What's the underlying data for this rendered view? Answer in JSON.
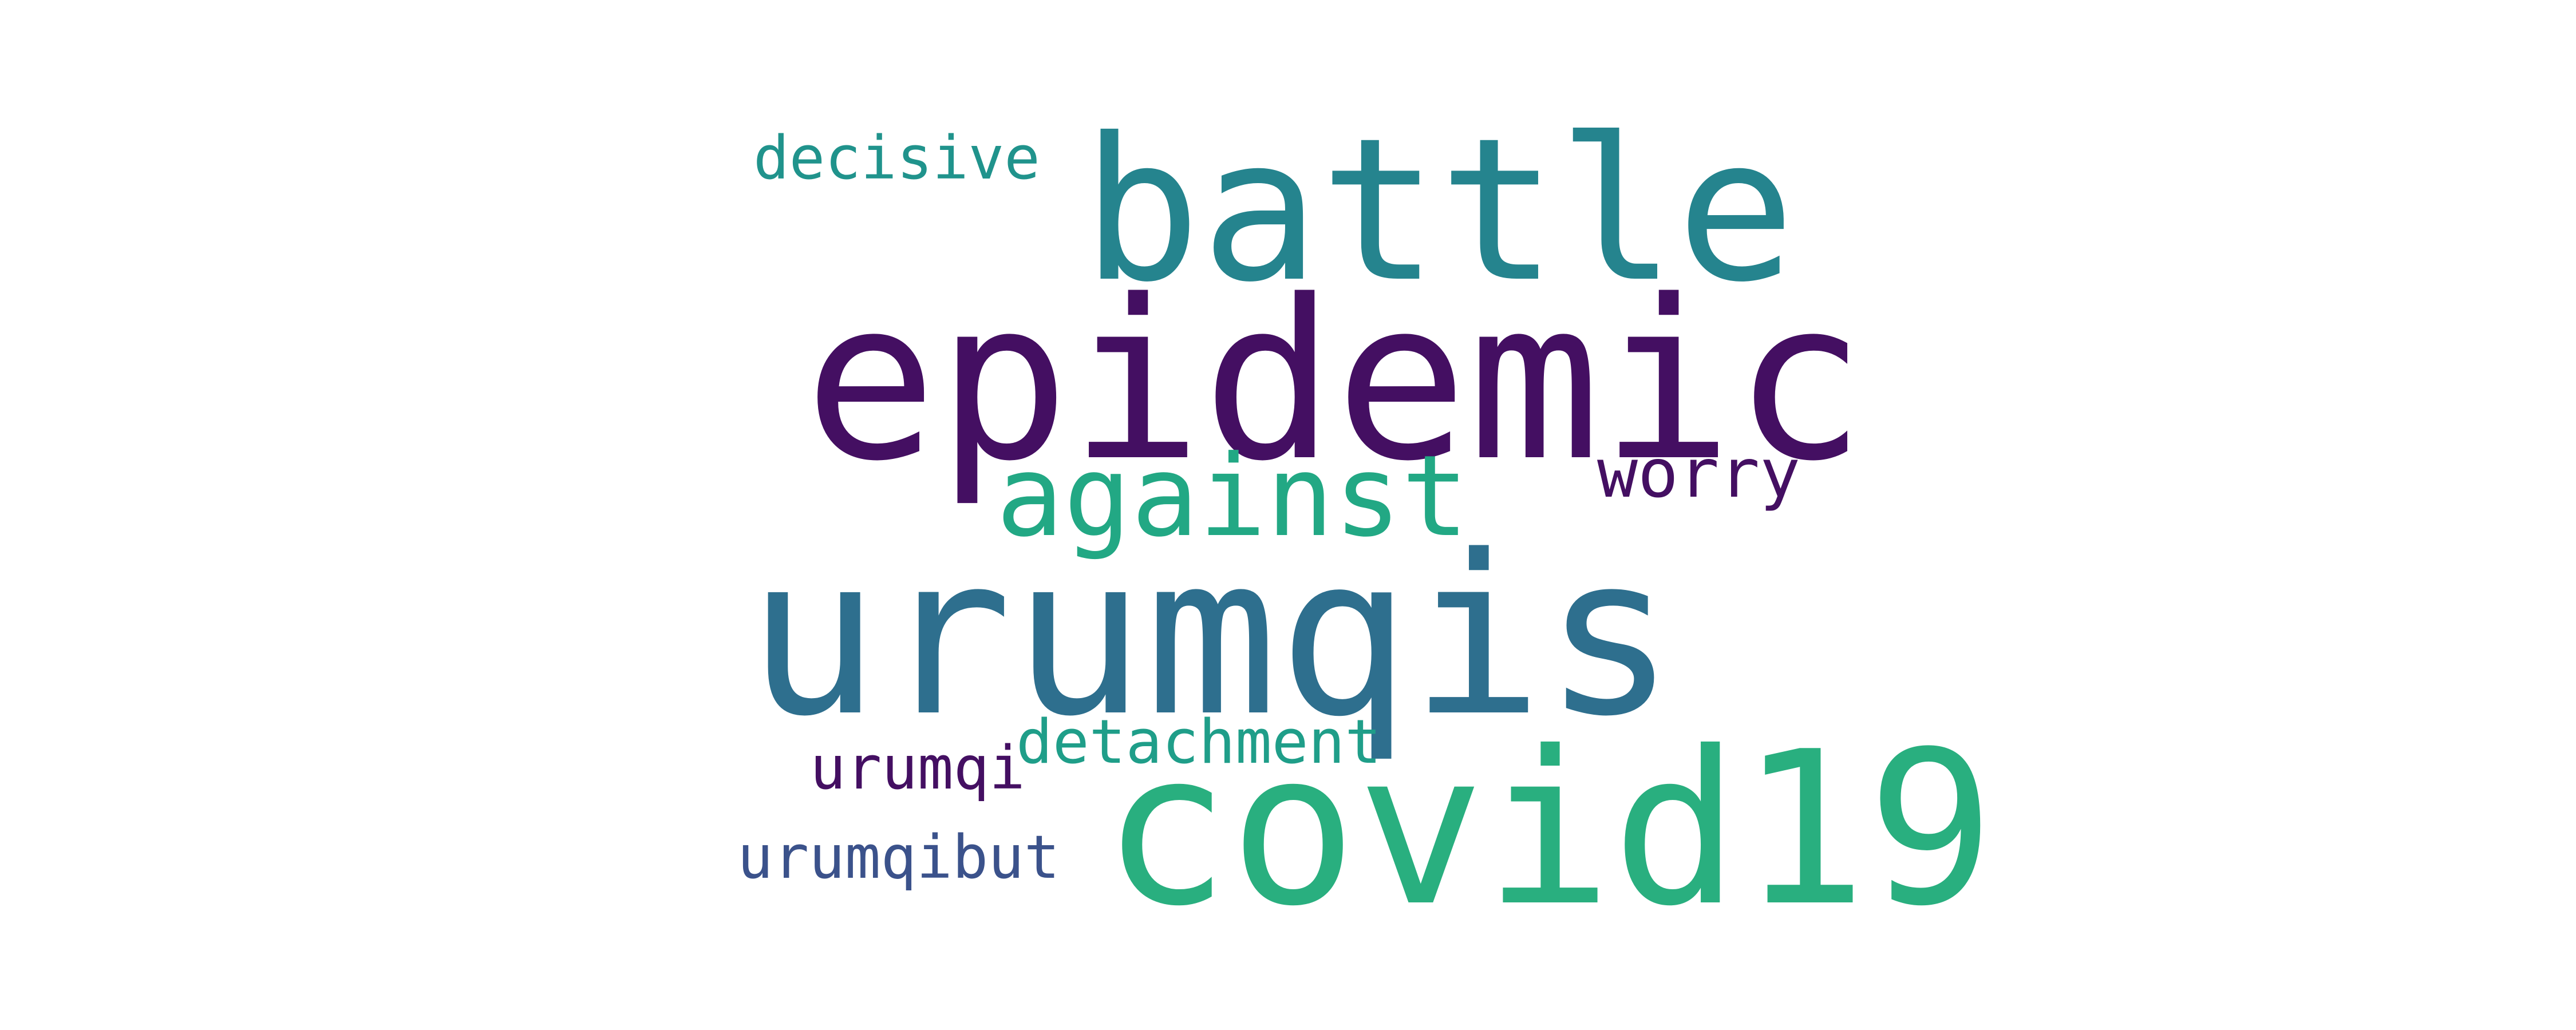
{
  "words": [
    {
      "text": "epidemic",
      "color": "#440f62"
    },
    {
      "text": "battle",
      "color": "#25848e"
    },
    {
      "text": "urumqis",
      "color": "#2e6f8e"
    },
    {
      "text": "covid19",
      "color": "#29af7f"
    },
    {
      "text": "against",
      "color": "#22a884"
    },
    {
      "text": "decisive",
      "color": "#20938c"
    },
    {
      "text": "worry",
      "color": "#440f62"
    },
    {
      "text": "detachment",
      "color": "#1f9e89"
    },
    {
      "text": "urumqi",
      "color": "#440f62"
    },
    {
      "text": "urumqibut",
      "color": "#3b528b"
    }
  ]
}
